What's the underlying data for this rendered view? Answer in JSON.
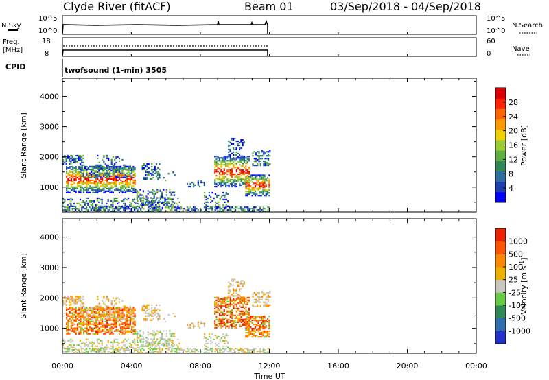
{
  "header": {
    "station": "Clyde River (fitACF)",
    "beam": "Beam 01",
    "date_range": "03/Sep/2018 - 04/Sep/2018"
  },
  "nsky_panel": {
    "left_label": "N.Sky",
    "right_label": "N.Search",
    "left_ticks": [
      "10^5",
      "10^0"
    ],
    "right_ticks": [
      "10^5",
      "10^0"
    ]
  },
  "freq_panel": {
    "left_label_line1": "Freq.",
    "left_label_line2": "[MHz]",
    "right_label": "Nave",
    "left_ticks": [
      "18",
      "8"
    ],
    "right_ticks": [
      "60",
      "0"
    ]
  },
  "cpid": {
    "label": "CPID",
    "value": "twofsound (1-min) 3505"
  },
  "time_axis": {
    "tick_labels": [
      "00:00",
      "04:00",
      "08:00",
      "12:00",
      "16:00",
      "20:00",
      "00:00"
    ],
    "label": "Time UT"
  },
  "chart_data": [
    {
      "type": "heatmap",
      "title": "",
      "xlabel": "Time UT",
      "ylabel": "Slant Range [km]",
      "xlim": [
        0,
        24
      ],
      "ylim": [
        180,
        4600
      ],
      "y_ticks": [
        "1000",
        "2000",
        "3000",
        "4000"
      ],
      "colorbar": {
        "label": "Power [dB]",
        "tick_labels": [
          "28",
          "24",
          "20",
          "16",
          "12",
          "8",
          "4"
        ],
        "range": [
          0,
          32
        ],
        "colors": [
          "#0000ff",
          "#1f3fb0",
          "#2d6fa0",
          "#2e8b57",
          "#5fb040",
          "#9acd32",
          "#f0d000",
          "#ff9900",
          "#ff6600",
          "#ff2200",
          "#dd0000"
        ]
      },
      "data_extent_hours": [
        0,
        12
      ]
    },
    {
      "type": "heatmap",
      "title": "",
      "xlabel": "Time UT",
      "ylabel": "Slant Range [km]",
      "xlim": [
        0,
        24
      ],
      "ylim": [
        180,
        4600
      ],
      "y_ticks": [
        "1000",
        "2000",
        "3000",
        "4000"
      ],
      "colorbar": {
        "label": "Velocity [m s^-1]",
        "tick_labels": [
          "1000",
          "500",
          "100",
          "25",
          "-25",
          "-100",
          "-500",
          "-1000"
        ],
        "colors": [
          "#2233cc",
          "#2e6fb0",
          "#2e8b57",
          "#66cc44",
          "#c8c8c0",
          "#f0b000",
          "#ff8800",
          "#ff5500",
          "#ee2200"
        ]
      },
      "data_extent_hours": [
        0,
        12
      ]
    }
  ]
}
